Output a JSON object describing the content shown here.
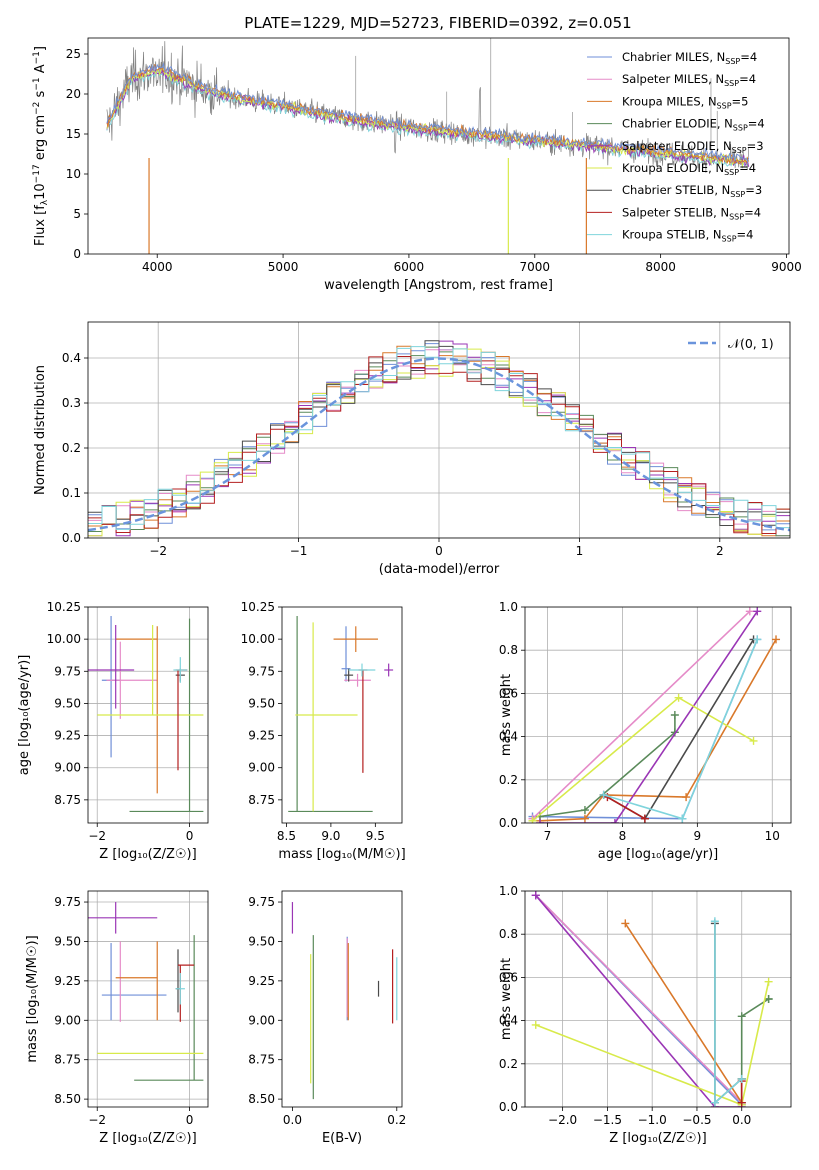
{
  "title": "PLATE=1229, MJD=52723, FIBERID=0392, z=0.051",
  "colors": {
    "Chabrier MILES": "#6f8fd8",
    "Salpeter MILES": "#e58bc8",
    "Kroupa MILES": "#d9782a",
    "Chabrier ELODIE": "#5a8a5a",
    "Salpeter ELODIE": "#9a36b5",
    "Kroupa ELODIE": "#d8ea4a",
    "Chabrier STELIB": "#4a4a4a",
    "Salpeter STELIB": "#b42020",
    "Kroupa STELIB": "#7fd4dc",
    "normal": "#6a94dc",
    "data": "#808080"
  },
  "chart_data": [
    {
      "type": "line",
      "id": "spectrum",
      "xlabel": "wavelength [Angstrom, rest frame]",
      "ylabel_pre": "Flux [f",
      "ylabel_sub": "λ",
      "ylabel_mid": "10",
      "ylabel_sup1": "−17",
      "ylabel_post": " erg cm",
      "ylabel_sup2": "−2",
      "ylabel_post2": " s",
      "ylabel_sup3": "−1",
      "ylabel_post3": " A",
      "ylabel_sup4": "−1",
      "ylabel_end": "]",
      "xlim": [
        3450,
        9020
      ],
      "ylim": [
        0,
        27
      ],
      "xticks": [
        4000,
        5000,
        6000,
        7000,
        8000,
        9000
      ],
      "yticks": [
        0,
        5,
        10,
        15,
        20,
        25
      ],
      "legend_position": "top-right",
      "legend": [
        {
          "name": "Chabrier MILES, N",
          "n": "=4",
          "color_key": "Chabrier MILES"
        },
        {
          "name": "Salpeter MILES, N",
          "n": "=4",
          "color_key": "Salpeter MILES"
        },
        {
          "name": "Kroupa MILES, N",
          "n": "=5",
          "color_key": "Kroupa MILES"
        },
        {
          "name": "Chabrier ELODIE, N",
          "n": "=4",
          "color_key": "Chabrier ELODIE"
        },
        {
          "name": "Salpeter ELODIE, N",
          "n": "=3",
          "color_key": "Salpeter ELODIE"
        },
        {
          "name": "Kroupa ELODIE, N",
          "n": "=4",
          "color_key": "Kroupa ELODIE"
        },
        {
          "name": "Chabrier STELIB, N",
          "n": "=3",
          "color_key": "Chabrier STELIB"
        },
        {
          "name": "Salpeter STELIB, N",
          "n": "=4",
          "color_key": "Salpeter STELIB"
        },
        {
          "name": "Kroupa STELIB, N",
          "n": "=4",
          "color_key": "Kroupa STELIB"
        }
      ],
      "legend_subscript": "SSP",
      "continuum": [
        [
          3600,
          16
        ],
        [
          3700,
          19
        ],
        [
          3800,
          22
        ],
        [
          3900,
          22.5
        ],
        [
          4000,
          23
        ],
        [
          4100,
          22.5
        ],
        [
          4300,
          21
        ],
        [
          4500,
          20
        ],
        [
          4800,
          19
        ],
        [
          5000,
          18.5
        ],
        [
          5300,
          17.5
        ],
        [
          5600,
          16.7
        ],
        [
          6000,
          15.8
        ],
        [
          6300,
          15.3
        ],
        [
          6600,
          14.8
        ],
        [
          7000,
          14.2
        ],
        [
          7400,
          13.6
        ],
        [
          7800,
          13
        ],
        [
          8200,
          12.3
        ],
        [
          8500,
          11.8
        ],
        [
          8700,
          11.5
        ]
      ]
    },
    {
      "type": "histogram",
      "id": "residuals",
      "xlabel": "(data-model)/error",
      "ylabel": "Normed distribution",
      "xlim": [
        -2.5,
        2.5
      ],
      "ylim": [
        0,
        0.48
      ],
      "xticks": [
        -2,
        -1,
        0,
        1,
        2
      ],
      "yticks": [
        0.0,
        0.1,
        0.2,
        0.3,
        0.4
      ],
      "legend": "𝒩(0, 1)",
      "legend_position": "top-right",
      "bin_width": 0.1
    },
    {
      "type": "scatter",
      "id": "age_vs_Z",
      "xlabel": "Z [log₁₀(Z/Z☉)]",
      "ylabel": "age  [log₁₀(age/yr)]",
      "xlim": [
        -2.2,
        0.4
      ],
      "ylim": [
        8.57,
        10.25
      ],
      "xticks": [
        -2,
        0
      ],
      "yticks": [
        8.75,
        9.0,
        9.25,
        9.5,
        9.75,
        10.0,
        10.25
      ],
      "points": [
        {
          "c": "Chabrier MILES",
          "x": -1.7,
          "y": 9.68,
          "xe": [
            0.2,
            0.2
          ],
          "ye": [
            0.6,
            0.5
          ]
        },
        {
          "c": "Salpeter MILES",
          "x": -1.5,
          "y": 9.68,
          "xe": [
            0.3,
            0.8
          ],
          "ye": [
            0.3,
            0.3
          ]
        },
        {
          "c": "Kroupa MILES",
          "x": -0.7,
          "y": 10.0,
          "xe": [
            0.9,
            0.0
          ],
          "ye": [
            1.2,
            0.1
          ]
        },
        {
          "c": "Chabrier ELODIE",
          "x": 0.0,
          "y": 8.66,
          "xe": [
            1.3,
            0.3
          ],
          "ye": [
            0.0,
            1.5
          ]
        },
        {
          "c": "Salpeter ELODIE",
          "x": -1.6,
          "y": 9.76,
          "xe": [
            0.6,
            0.4
          ],
          "ye": [
            0.3,
            0.35
          ]
        },
        {
          "c": "Kroupa ELODIE",
          "x": -0.8,
          "y": 9.41,
          "xe": [
            1.2,
            1.1
          ],
          "ye": [
            0.0,
            0.7
          ]
        },
        {
          "c": "Chabrier STELIB",
          "x": -0.2,
          "y": 9.72,
          "xe": [
            0.1,
            0.1
          ],
          "ye": [
            0.05,
            0.05
          ]
        },
        {
          "c": "Salpeter STELIB",
          "x": -0.25,
          "y": 9.76,
          "xe": [
            0.05,
            0.2
          ],
          "ye": [
            0.78,
            0.0
          ]
        },
        {
          "c": "Kroupa STELIB",
          "x": -0.2,
          "y": 9.76,
          "xe": [
            0.15,
            0.15
          ],
          "ye": [
            0.1,
            0.1
          ]
        }
      ]
    },
    {
      "type": "scatter",
      "id": "age_vs_mass",
      "xlabel": "mass [log₁₀(M/M☉)]",
      "xlim": [
        8.45,
        9.8
      ],
      "ylim": [
        8.57,
        10.25
      ],
      "xticks": [
        8.5,
        9.0,
        9.5
      ],
      "yticks": [
        8.75,
        9.0,
        9.25,
        9.5,
        9.75,
        10.0,
        10.25
      ],
      "points": [
        {
          "c": "Chabrier MILES",
          "x": 9.17,
          "y": 9.77,
          "xe": [
            0.05,
            0.05
          ],
          "ye": [
            0.1,
            0.33
          ]
        },
        {
          "c": "Salpeter MILES",
          "x": 9.3,
          "y": 9.68,
          "xe": [
            0.15,
            0.15
          ],
          "ye": [
            0.05,
            0.05
          ]
        },
        {
          "c": "Kroupa MILES",
          "x": 9.28,
          "y": 10.0,
          "xe": [
            0.25,
            0.25
          ],
          "ye": [
            0.1,
            0.1
          ]
        },
        {
          "c": "Chabrier ELODIE",
          "x": 8.62,
          "y": 8.66,
          "xe": [
            0.1,
            0.85
          ],
          "ye": [
            0.0,
            1.52
          ]
        },
        {
          "c": "Salpeter ELODIE",
          "x": 9.65,
          "y": 9.76,
          "xe": [
            0.05,
            0.05
          ],
          "ye": [
            0.05,
            0.05
          ]
        },
        {
          "c": "Kroupa ELODIE",
          "x": 8.8,
          "y": 9.41,
          "xe": [
            0.2,
            0.5
          ],
          "ye": [
            0.75,
            0.72
          ]
        },
        {
          "c": "Chabrier STELIB",
          "x": 9.2,
          "y": 9.72,
          "xe": [
            0.05,
            0.05
          ],
          "ye": [
            0.05,
            0.05
          ]
        },
        {
          "c": "Salpeter STELIB",
          "x": 9.36,
          "y": 9.76,
          "xe": [
            0.05,
            0.05
          ],
          "ye": [
            0.8,
            0.0
          ]
        },
        {
          "c": "Kroupa STELIB",
          "x": 9.35,
          "y": 9.76,
          "xe": [
            0.15,
            0.15
          ],
          "ye": [
            0.05,
            0.05
          ]
        }
      ]
    },
    {
      "type": "line",
      "id": "weight_vs_age",
      "xlabel": "age  [log₁₀(age/yr)]",
      "ylabel": "mass weight",
      "xlim": [
        6.7,
        10.25
      ],
      "ylim": [
        0,
        1.0
      ],
      "xticks": [
        7,
        8,
        9,
        10
      ],
      "yticks": [
        0.0,
        0.2,
        0.4,
        0.6,
        0.8,
        1.0
      ],
      "series": [
        {
          "c": "Chabrier MILES",
          "x": [
            6.8,
            8.8,
            9.8
          ],
          "y": [
            0.03,
            0.02,
            0.85
          ]
        },
        {
          "c": "Salpeter MILES",
          "x": [
            6.8,
            9.7
          ],
          "y": [
            0.02,
            0.98
          ]
        },
        {
          "c": "Kroupa MILES",
          "x": [
            6.9,
            7.5,
            7.75,
            8.85,
            10.05
          ],
          "y": [
            0.01,
            0.02,
            0.13,
            0.12,
            0.85
          ]
        },
        {
          "c": "Chabrier ELODIE",
          "x": [
            6.9,
            7.5,
            8.7,
            8.7
          ],
          "y": [
            0.03,
            0.06,
            0.42,
            0.5
          ]
        },
        {
          "c": "Salpeter ELODIE",
          "x": [
            6.9,
            7.9,
            9.8
          ],
          "y": [
            0.0,
            0.0,
            0.98
          ]
        },
        {
          "c": "Kroupa ELODIE",
          "x": [
            6.8,
            8.75,
            9.75
          ],
          "y": [
            0.01,
            0.58,
            0.38
          ]
        },
        {
          "c": "Chabrier STELIB",
          "x": [
            7.75,
            8.3,
            9.75
          ],
          "y": [
            0.13,
            0.02,
            0.85
          ]
        },
        {
          "c": "Salpeter STELIB",
          "x": [
            7.8,
            8.3
          ],
          "y": [
            0.12,
            0.02
          ]
        },
        {
          "c": "Kroupa STELIB",
          "x": [
            7.75,
            8.8,
            9.8
          ],
          "y": [
            0.13,
            0.02,
            0.85
          ]
        }
      ]
    },
    {
      "type": "scatter",
      "id": "mass_vs_Z",
      "xlabel": "Z [log₁₀(Z/Z☉)]",
      "ylabel": "mass [log₁₀(M/M☉)]",
      "xlim": [
        -2.2,
        0.4
      ],
      "ylim": [
        8.45,
        9.82
      ],
      "xticks": [
        -2,
        0
      ],
      "yticks": [
        8.5,
        8.75,
        9.0,
        9.25,
        9.5,
        9.75
      ],
      "points": [
        {
          "c": "Chabrier MILES",
          "x": -1.7,
          "y": 9.16,
          "xe": [
            0.2,
            1.2
          ],
          "ye": [
            0.16,
            0.33
          ]
        },
        {
          "c": "Salpeter MILES",
          "x": -1.5,
          "y": 9.25,
          "xe": [
            0.0,
            0.0
          ],
          "ye": [
            0.26,
            0.25
          ]
        },
        {
          "c": "Kroupa MILES",
          "x": -0.7,
          "y": 9.27,
          "xe": [
            0.9,
            0.0
          ],
          "ye": [
            0.27,
            0.23
          ]
        },
        {
          "c": "Chabrier ELODIE",
          "x": 0.1,
          "y": 8.62,
          "xe": [
            1.3,
            0.2
          ],
          "ye": [
            0.0,
            0.92
          ]
        },
        {
          "c": "Salpeter ELODIE",
          "x": -1.6,
          "y": 9.65,
          "xe": [
            0.6,
            0.9
          ],
          "ye": [
            0.1,
            0.1
          ]
        },
        {
          "c": "Kroupa ELODIE",
          "x": -0.2,
          "y": 8.79,
          "xe": [
            1.8,
            0.5
          ],
          "ye": [
            0.0,
            0.0
          ]
        },
        {
          "c": "Chabrier STELIB",
          "x": -0.25,
          "y": 9.2,
          "xe": [
            0.05,
            0.05
          ],
          "ye": [
            0.15,
            0.25
          ]
        },
        {
          "c": "Salpeter STELIB",
          "x": -0.2,
          "y": 9.35,
          "xe": [
            0.05,
            0.3
          ],
          "ye": [
            0.36,
            0.0
          ]
        },
        {
          "c": "Kroupa STELIB",
          "x": -0.2,
          "y": 9.2,
          "xe": [
            0.1,
            0.1
          ],
          "ye": [
            0.1,
            0.1
          ]
        }
      ]
    },
    {
      "type": "scatter",
      "id": "mass_vs_ebv",
      "xlabel": "E(B-V)",
      "xlim": [
        -0.02,
        0.21
      ],
      "ylim": [
        8.45,
        9.82
      ],
      "xticks": [
        0.0,
        0.2
      ],
      "yticks": [
        8.5,
        8.75,
        9.0,
        9.25,
        9.5,
        9.75
      ],
      "points": [
        {
          "c": "Chabrier MILES",
          "x": 0.105,
          "y": 9.27,
          "xe": [
            0,
            0
          ],
          "ye": [
            0.27,
            0.26
          ]
        },
        {
          "c": "Salpeter MILES",
          "x": 0.105,
          "y": 9.27,
          "xe": [
            0,
            0
          ],
          "ye": [
            0.25,
            0.25
          ]
        },
        {
          "c": "Kroupa MILES",
          "x": 0.107,
          "y": 9.27,
          "xe": [
            0,
            0
          ],
          "ye": [
            0.27,
            0.22
          ]
        },
        {
          "c": "Chabrier ELODIE",
          "x": 0.04,
          "y": 9.0,
          "xe": [
            0,
            0
          ],
          "ye": [
            0.5,
            0.54
          ]
        },
        {
          "c": "Salpeter ELODIE",
          "x": 0.0,
          "y": 9.65,
          "xe": [
            0,
            0
          ],
          "ye": [
            0.1,
            0.1
          ]
        },
        {
          "c": "Kroupa ELODIE",
          "x": 0.035,
          "y": 9.0,
          "xe": [
            0,
            0
          ],
          "ye": [
            0.4,
            0.42
          ]
        },
        {
          "c": "Chabrier STELIB",
          "x": 0.165,
          "y": 9.2,
          "xe": [
            0,
            0
          ],
          "ye": [
            0.05,
            0.05
          ]
        },
        {
          "c": "Salpeter STELIB",
          "x": 0.192,
          "y": 9.2,
          "xe": [
            0,
            0
          ],
          "ye": [
            0.22,
            0.25
          ]
        },
        {
          "c": "Kroupa STELIB",
          "x": 0.2,
          "y": 9.2,
          "xe": [
            0,
            0
          ],
          "ye": [
            0.2,
            0.2
          ]
        }
      ]
    },
    {
      "type": "line",
      "id": "weight_vs_Z",
      "xlabel": "Z [log₁₀(Z/Z☉)]",
      "ylabel": "mass weight",
      "xlim": [
        -2.42,
        0.55
      ],
      "ylim": [
        0,
        1.0
      ],
      "xticks": [
        -2.0,
        -1.5,
        -1.0,
        -0.5,
        0.0
      ],
      "yticks": [
        0.0,
        0.2,
        0.4,
        0.6,
        0.8,
        1.0
      ],
      "series": [
        {
          "c": "Chabrier MILES",
          "x": [
            -2.3,
            0.0
          ],
          "y": [
            0.98,
            0.01
          ]
        },
        {
          "c": "Salpeter MILES",
          "x": [
            -2.3,
            0.0
          ],
          "y": [
            0.98,
            0.02
          ]
        },
        {
          "c": "Kroupa MILES",
          "x": [
            -1.3,
            0.0,
            0.0
          ],
          "y": [
            0.85,
            0.02,
            0.13
          ]
        },
        {
          "c": "Chabrier ELODIE",
          "x": [
            0.0,
            0.0,
            0.3,
            0.3
          ],
          "y": [
            0.02,
            0.42,
            0.5,
            0.5
          ]
        },
        {
          "c": "Salpeter ELODIE",
          "x": [
            -2.3,
            -0.3,
            0.0
          ],
          "y": [
            0.98,
            0.0,
            0.0
          ]
        },
        {
          "c": "Kroupa ELODIE",
          "x": [
            -2.3,
            0.0,
            0.3
          ],
          "y": [
            0.38,
            0.01,
            0.58
          ]
        },
        {
          "c": "Chabrier STELIB",
          "x": [
            -0.3,
            -0.3,
            0.0
          ],
          "y": [
            0.85,
            0.02,
            0.13
          ]
        },
        {
          "c": "Salpeter STELIB",
          "x": [
            0.0,
            0.0
          ],
          "y": [
            0.12,
            0.02
          ]
        },
        {
          "c": "Kroupa STELIB",
          "x": [
            -0.3,
            -0.3,
            0.0
          ],
          "y": [
            0.86,
            0.02,
            0.13
          ]
        }
      ]
    }
  ]
}
